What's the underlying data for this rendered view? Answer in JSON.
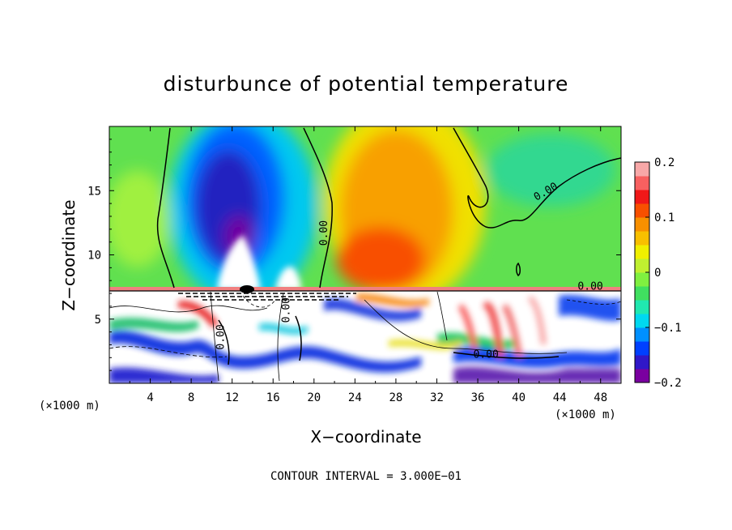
{
  "chart_data": {
    "type": "heatmap",
    "title": "disturbunce of potential temperature",
    "xlabel": "X−coordinate",
    "ylabel": "Z−coordinate",
    "x_unit": "(×1000 m)",
    "x_unit_right": "(×1000 m)",
    "footer": "CONTOUR INTERVAL = 3.000E−01",
    "xlim": [
      0,
      50
    ],
    "ylim": [
      0,
      20
    ],
    "x_ticks": [
      4,
      8,
      12,
      16,
      20,
      24,
      28,
      32,
      36,
      40,
      44,
      48
    ],
    "x_tick_labels": [
      "4",
      "8",
      "12",
      "16",
      "20",
      "24",
      "28",
      "32",
      "36",
      "40",
      "44",
      "48"
    ],
    "y_ticks": [
      5,
      10,
      15
    ],
    "y_tick_labels": [
      "5",
      "10",
      "15"
    ],
    "colorbar": {
      "range": [
        -0.2,
        0.2
      ],
      "tick_values": [
        0.2,
        0.1,
        0,
        -0.1,
        -0.2
      ],
      "tick_labels": [
        "0.2",
        "0.1",
        "0",
        "−0.1",
        "−0.2"
      ],
      "colors": [
        "#7a00a0",
        "#3018c8",
        "#0040ff",
        "#0090ff",
        "#00d8f0",
        "#20e8b0",
        "#40e060",
        "#80f040",
        "#c0f030",
        "#f0f000",
        "#f8c000",
        "#f89000",
        "#f85000",
        "#f01818",
        "#f86060",
        "#f8a8a8"
      ]
    },
    "contour_labels": [
      {
        "text": "0.00",
        "x": 21.3,
        "y": 11.7,
        "rotate": -90
      },
      {
        "text": "0.00",
        "x": 42.8,
        "y": 14.7,
        "rotate": -30
      },
      {
        "text": "0.00",
        "x": 47.0,
        "y": 7.3,
        "rotate": 0
      },
      {
        "text": "0.00",
        "x": 36.8,
        "y": 2.0,
        "rotate": 0
      },
      {
        "text": "0.00",
        "x": 11.2,
        "y": 3.6,
        "rotate": -90
      },
      {
        "text": "0.00",
        "x": 17.6,
        "y": 5.7,
        "rotate": -90
      }
    ],
    "field_description_blobs": [
      {
        "x": 0,
        "y": 7.5,
        "w": 50,
        "h": 12.5,
        "value": 0.0
      },
      {
        "x": 14.0,
        "y": 14.0,
        "rx": 4.5,
        "ry": 6.0,
        "value": -0.13
      },
      {
        "x": 12.5,
        "y": 13.0,
        "rx": 2.2,
        "ry": 3.5,
        "value": -0.18
      },
      {
        "x": 29.0,
        "y": 13.0,
        "rx": 5.5,
        "ry": 6.0,
        "value": 0.09
      },
      {
        "x": 26.0,
        "y": 9.0,
        "rx": 3.0,
        "ry": 2.0,
        "value": 0.12
      },
      {
        "x": 44.0,
        "y": 16.5,
        "rx": 5.0,
        "ry": 2.5,
        "value": -0.03
      }
    ]
  }
}
